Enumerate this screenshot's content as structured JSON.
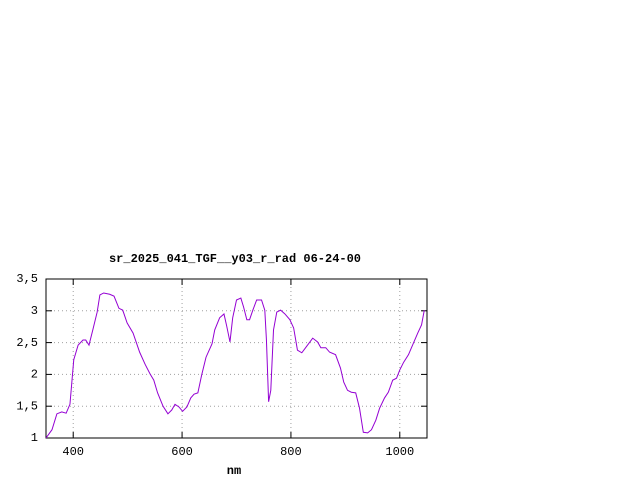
{
  "chart_data": {
    "type": "line",
    "title": "sr_2025_041_TGF__y03_r_rad 06-24-00",
    "x_label": "nm",
    "x": [
      350,
      361,
      370,
      379,
      387,
      394,
      401,
      409,
      418,
      423,
      429,
      436,
      444,
      449,
      456,
      467,
      475,
      484,
      491,
      499,
      510,
      522,
      532,
      541,
      548,
      555,
      565,
      574,
      581,
      587,
      594,
      601,
      609,
      616,
      622,
      629,
      636,
      644,
      655,
      660,
      669,
      677,
      682,
      688,
      693,
      700,
      708,
      713,
      719,
      724,
      730,
      737,
      746,
      752,
      755,
      759,
      763,
      768,
      774,
      781,
      789,
      798,
      805,
      812,
      820,
      827,
      840,
      849,
      855,
      864,
      871,
      882,
      891,
      897,
      904,
      911,
      919,
      926,
      933,
      941,
      948,
      956,
      963,
      972,
      979,
      987,
      994,
      1000,
      1007,
      1016,
      1025,
      1033,
      1040,
      1045
    ],
    "values": [
      1.0,
      1.13,
      1.38,
      1.41,
      1.39,
      1.53,
      2.23,
      2.46,
      2.54,
      2.54,
      2.46,
      2.7,
      2.98,
      3.25,
      3.28,
      3.26,
      3.23,
      3.04,
      3.01,
      2.81,
      2.65,
      2.35,
      2.16,
      2.01,
      1.91,
      1.71,
      1.5,
      1.38,
      1.44,
      1.53,
      1.49,
      1.42,
      1.49,
      1.63,
      1.69,
      1.71,
      1.99,
      2.27,
      2.48,
      2.7,
      2.89,
      2.95,
      2.76,
      2.51,
      2.89,
      3.17,
      3.2,
      3.06,
      2.86,
      2.86,
      3.01,
      3.17,
      3.17,
      3.01,
      2.54,
      1.57,
      1.75,
      2.7,
      2.98,
      3.01,
      2.95,
      2.86,
      2.73,
      2.38,
      2.34,
      2.42,
      2.57,
      2.51,
      2.42,
      2.42,
      2.35,
      2.31,
      2.1,
      1.88,
      1.75,
      1.72,
      1.71,
      1.47,
      1.09,
      1.08,
      1.13,
      1.28,
      1.47,
      1.63,
      1.72,
      1.91,
      1.94,
      2.07,
      2.19,
      2.31,
      2.49,
      2.65,
      2.78,
      3.01
    ],
    "color": "#9400d3",
    "xlim": [
      350,
      1050
    ],
    "xticks": [
      400,
      600,
      800,
      1000
    ],
    "ylim": [
      1,
      3.5
    ],
    "yticks": [
      1,
      {
        "value": 1.5,
        "label": "1,5"
      },
      2,
      {
        "value": 2.5,
        "label": "2,5"
      },
      3,
      {
        "value": 3.5,
        "label": "3,5"
      }
    ],
    "grid": true
  }
}
